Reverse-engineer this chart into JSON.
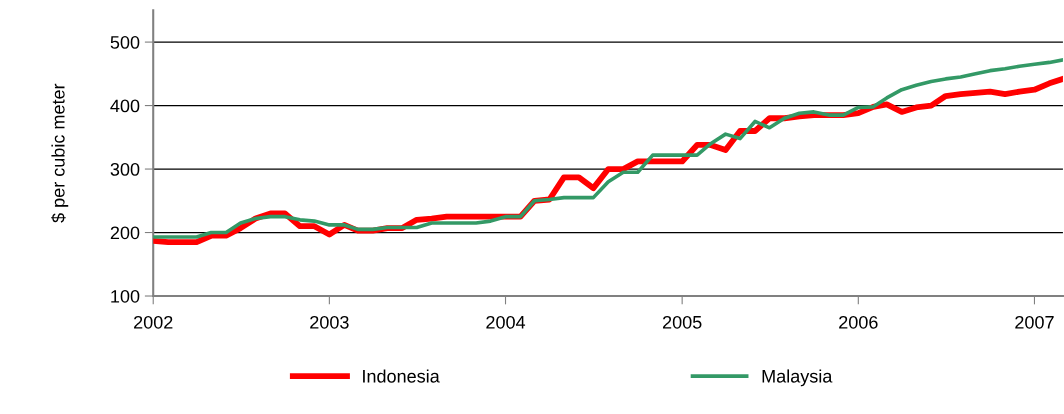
{
  "chart_data": {
    "type": "line",
    "ylabel": "$ per cubic meter",
    "x": [
      "2002-01",
      "2002-02",
      "2002-03",
      "2002-04",
      "2002-05",
      "2002-06",
      "2002-07",
      "2002-08",
      "2002-09",
      "2002-10",
      "2002-11",
      "2002-12",
      "2003-01",
      "2003-02",
      "2003-03",
      "2003-04",
      "2003-05",
      "2003-06",
      "2003-07",
      "2003-08",
      "2003-09",
      "2003-10",
      "2003-11",
      "2003-12",
      "2004-01",
      "2004-02",
      "2004-03",
      "2004-04",
      "2004-05",
      "2004-06",
      "2004-07",
      "2004-08",
      "2004-09",
      "2004-10",
      "2004-11",
      "2004-12",
      "2005-01",
      "2005-02",
      "2005-03",
      "2005-04",
      "2005-05",
      "2005-06",
      "2005-07",
      "2005-08",
      "2005-09",
      "2005-10",
      "2005-11",
      "2005-12",
      "2006-01",
      "2006-02",
      "2006-03",
      "2006-04",
      "2006-05",
      "2006-06",
      "2006-07",
      "2006-08",
      "2006-09",
      "2006-10",
      "2006-11",
      "2006-12",
      "2007-01",
      "2007-02",
      "2007-03"
    ],
    "series": [
      {
        "name": "Indonesia",
        "color": "#ff0000",
        "values": [
          187,
          185,
          185,
          185,
          195,
          195,
          207,
          222,
          230,
          230,
          210,
          210,
          197,
          212,
          203,
          203,
          207,
          207,
          220,
          222,
          225,
          225,
          225,
          225,
          225,
          225,
          250,
          252,
          287,
          287,
          270,
          300,
          300,
          312,
          312,
          312,
          312,
          338,
          338,
          330,
          360,
          360,
          380,
          380,
          383,
          385,
          385,
          385,
          388,
          398,
          402,
          390,
          397,
          400,
          415,
          418,
          420,
          422,
          418,
          422,
          425,
          435,
          442
        ]
      },
      {
        "name": "Malaysia",
        "color": "#339966",
        "values": [
          193,
          193,
          193,
          193,
          200,
          200,
          215,
          222,
          225,
          225,
          220,
          218,
          212,
          212,
          205,
          205,
          208,
          208,
          208,
          215,
          215,
          215,
          215,
          218,
          225,
          225,
          250,
          252,
          255,
          255,
          255,
          280,
          295,
          295,
          322,
          322,
          322,
          322,
          340,
          355,
          348,
          375,
          365,
          380,
          388,
          390,
          385,
          385,
          397,
          398,
          412,
          425,
          432,
          438,
          442,
          445,
          450,
          455,
          458,
          462,
          465,
          468,
          472
        ]
      }
    ],
    "xlim": [
      "2002-01-01",
      "2007-03-01"
    ],
    "xticks": [
      {
        "value": "2002-01-01",
        "label": "2002"
      },
      {
        "value": "2003-01-01",
        "label": "2003"
      },
      {
        "value": "2004-01-01",
        "label": "2004"
      },
      {
        "value": "2005-01-01",
        "label": "2005"
      },
      {
        "value": "2006-01-01",
        "label": "2006"
      },
      {
        "value": "2007-01-01",
        "label": "2007"
      }
    ],
    "ylim": [
      100,
      550
    ],
    "yticks": [
      100,
      200,
      300,
      400,
      500
    ],
    "grid": "y",
    "legend": "bottom",
    "marker": "none",
    "line_style": "solid"
  }
}
